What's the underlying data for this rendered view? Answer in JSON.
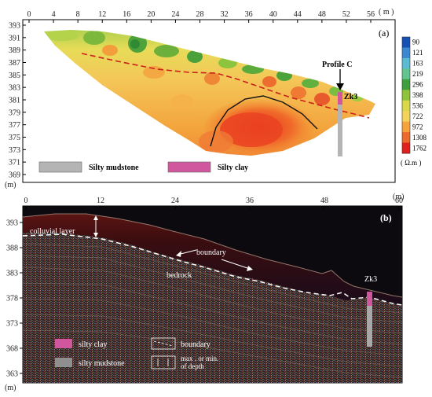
{
  "panel_a": {
    "label": "(a)",
    "x_unit": "( m )",
    "y_unit": "(m)",
    "x_ticks": [
      "0",
      "4",
      "8",
      "12",
      "16",
      "20",
      "24",
      "28",
      "32",
      "36",
      "40",
      "44",
      "48",
      "52",
      "56"
    ],
    "y_ticks": [
      "393",
      "391",
      "389",
      "387",
      "385",
      "383",
      "381",
      "379",
      "377",
      "375",
      "373",
      "371",
      "369"
    ],
    "profile_label": "Profile C",
    "borehole_label": "Zk3",
    "legend": [
      {
        "label": "Silty mudstone",
        "color": "#b4b4b4"
      },
      {
        "label": "Silty clay",
        "color": "#d0579d"
      }
    ],
    "colorbar": {
      "values": [
        "90",
        "121",
        "163",
        "219",
        "296",
        "398",
        "536",
        "722",
        "972",
        "1308",
        "1762"
      ],
      "colors": [
        "#1550b4",
        "#3a88d0",
        "#5bbbd2",
        "#62c48e",
        "#3f9f3c",
        "#8fc33a",
        "#d8d84a",
        "#f3d35c",
        "#f6a33a",
        "#ec6a2c",
        "#e0201d"
      ],
      "unit": "( Ω.m )"
    }
  },
  "panel_b": {
    "label": "(b)",
    "x_unit": "(m)",
    "y_unit": "(m)",
    "x_ticks": [
      "0",
      "12",
      "24",
      "36",
      "48",
      "60"
    ],
    "y_ticks": [
      "393",
      "388",
      "383",
      "378",
      "373",
      "368",
      "363"
    ],
    "annotations": {
      "colluvial": "colluvial layer",
      "boundary": "boundary",
      "bedrock": "bedrock",
      "borehole": "Zk3"
    },
    "legend": {
      "silty_clay": "silty clay",
      "silty_mudstone": "silty mudstone",
      "boundary": "boundary",
      "depth": "max . or min.",
      "depth2": "of depth"
    }
  }
}
